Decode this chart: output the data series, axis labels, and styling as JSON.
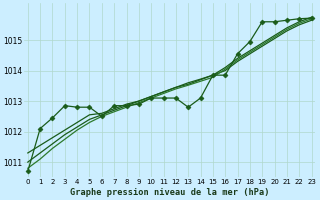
{
  "xlabel": "Graphe pression niveau de la mer (hPa)",
  "bg_color": "#cceeff",
  "grid_color": "#b0d8cc",
  "line_color_dark": "#1a5c1a",
  "line_color_mid": "#2d7a2d",
  "x_ticks": [
    0,
    1,
    2,
    3,
    4,
    5,
    6,
    7,
    8,
    9,
    10,
    11,
    12,
    13,
    14,
    15,
    16,
    17,
    18,
    19,
    20,
    21,
    22,
    23
  ],
  "ylim": [
    1010.5,
    1016.2
  ],
  "yticks": [
    1011,
    1012,
    1013,
    1014,
    1015
  ],
  "series_linear_1": [
    1011.3,
    1011.55,
    1011.8,
    1012.05,
    1012.3,
    1012.55,
    1012.6,
    1012.75,
    1012.9,
    1013.0,
    1013.15,
    1013.3,
    1013.45,
    1013.55,
    1013.7,
    1013.85,
    1014.0,
    1014.3,
    1014.55,
    1014.8,
    1015.05,
    1015.3,
    1015.5,
    1015.65
  ],
  "series_linear_2": [
    1011.0,
    1011.3,
    1011.6,
    1011.9,
    1012.15,
    1012.4,
    1012.55,
    1012.7,
    1012.85,
    1013.0,
    1013.15,
    1013.3,
    1013.45,
    1013.6,
    1013.72,
    1013.85,
    1014.1,
    1014.4,
    1014.65,
    1014.9,
    1015.15,
    1015.4,
    1015.6,
    1015.75
  ],
  "series_linear_3": [
    1010.8,
    1011.1,
    1011.45,
    1011.75,
    1012.05,
    1012.3,
    1012.5,
    1012.65,
    1012.8,
    1012.95,
    1013.1,
    1013.25,
    1013.4,
    1013.52,
    1013.65,
    1013.78,
    1014.05,
    1014.35,
    1014.6,
    1014.85,
    1015.1,
    1015.35,
    1015.55,
    1015.7
  ],
  "series_marker": [
    1010.7,
    1012.1,
    1012.45,
    1012.85,
    1012.8,
    1012.8,
    1012.5,
    1012.85,
    1012.85,
    1012.9,
    1013.1,
    1013.1,
    1013.1,
    1012.8,
    1013.1,
    1013.85,
    1013.85,
    1014.55,
    1014.95,
    1015.6,
    1015.6,
    1015.65,
    1015.7,
    1015.72
  ],
  "marker": "D",
  "markersize": 2.5,
  "linewidth": 0.9,
  "tick_fontsize": 5.0,
  "xlabel_fontsize": 6.2
}
